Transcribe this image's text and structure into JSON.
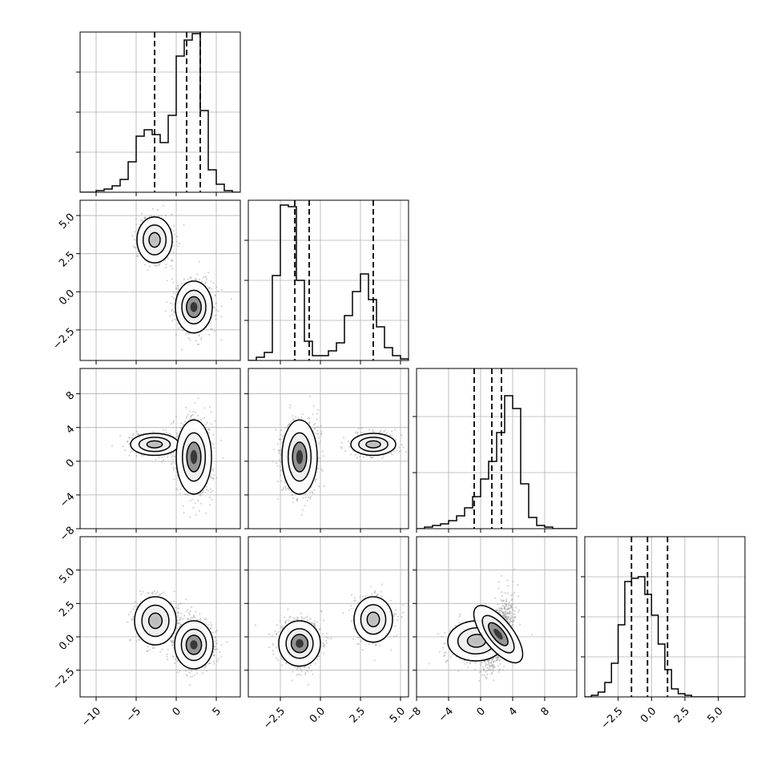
{
  "figure": {
    "type": "corner-plot",
    "background": "#ffffff",
    "line_color": "#000000",
    "grid_color": "#b0b0b0",
    "scatter_color": "#9e9e9e"
  },
  "chart_data": [
    {
      "type": "histogram",
      "panel": "p00",
      "xlim": [
        -12,
        8
      ],
      "ylim": [
        0,
        1.0
      ],
      "bin_start": -12,
      "bin_width": 1,
      "counts": [
        0,
        0,
        0.01,
        0.02,
        0.04,
        0.08,
        0.19,
        0.35,
        0.39,
        0.36,
        0.31,
        0.48,
        0.85,
        0.95,
        0.99,
        0.51,
        0.14,
        0.05,
        0.01,
        0.0
      ],
      "quantiles": [
        -2.7,
        1.3,
        3.0
      ],
      "yticks": [
        0.25,
        0.5,
        0.75
      ],
      "xticks": [
        -10,
        -5,
        0,
        5
      ],
      "show_tick_labels": false
    },
    {
      "type": "histogram",
      "panel": "p11",
      "xlim": [
        -4.5,
        5.5
      ],
      "ylim": [
        0,
        1.0
      ],
      "bin_start": -4.5,
      "bin_width": 0.5,
      "counts": [
        0,
        0.02,
        0.05,
        0.53,
        0.97,
        0.96,
        0.5,
        0.12,
        0.03,
        0.03,
        0.06,
        0.11,
        0.28,
        0.43,
        0.54,
        0.38,
        0.21,
        0.08,
        0.03,
        0.01
      ],
      "quantiles": [
        -1.6,
        -0.7,
        3.3
      ],
      "yticks": [
        0.25,
        0.5,
        0.75
      ],
      "xticks": [
        -2.5,
        0.0,
        2.5,
        5.0
      ],
      "show_tick_labels": false
    },
    {
      "type": "histogram",
      "panel": "p22",
      "xlim": [
        -8,
        12
      ],
      "ylim": [
        0,
        1.0
      ],
      "bin_start": -8,
      "bin_width": 1,
      "counts": [
        0,
        0.01,
        0.02,
        0.03,
        0.05,
        0.08,
        0.13,
        0.2,
        0.31,
        0.42,
        0.6,
        0.83,
        0.75,
        0.28,
        0.07,
        0.02,
        0.01,
        0,
        0,
        0
      ],
      "quantiles": [
        -0.8,
        1.4,
        2.6
      ],
      "yticks": [
        0.35,
        0.7
      ],
      "xticks": [
        -8,
        -4,
        0,
        4,
        8
      ],
      "show_tick_labels": false
    },
    {
      "type": "histogram",
      "panel": "p33",
      "xlim": [
        -5,
        7
      ],
      "ylim": [
        0,
        1.0
      ],
      "bin_start": -5,
      "bin_width": 0.5,
      "counts": [
        0,
        0.01,
        0.03,
        0.09,
        0.21,
        0.45,
        0.72,
        0.74,
        0.75,
        0.64,
        0.51,
        0.33,
        0.17,
        0.05,
        0.02,
        0.01,
        0,
        0,
        0,
        0,
        0,
        0,
        0,
        0
      ],
      "quantiles": [
        -1.5,
        -0.3,
        1.2
      ],
      "yticks": [
        0.25,
        0.5,
        0.75
      ],
      "xticks": [
        -2.5,
        0.0,
        2.5,
        5.0
      ],
      "xtick_labels": [
        "−2.5",
        "0.0",
        "2.5",
        "5.0"
      ]
    },
    {
      "type": "scatter-density",
      "panel": "p10",
      "xlim": [
        -12,
        8
      ],
      "ylim": [
        -4.5,
        6.0
      ],
      "xticks": [
        -10,
        -5,
        0,
        5
      ],
      "yticks": [
        -2.5,
        0.0,
        2.5,
        5.0
      ],
      "ytick_labels": [
        "−2.5",
        "0.0",
        "2.5",
        "5.0"
      ],
      "components": [
        {
          "cx": -2.7,
          "cy": 3.4,
          "sx": 1.1,
          "sy": 0.75,
          "rho": 0.0,
          "weight": 0.35
        },
        {
          "cx": 2.2,
          "cy": -1.0,
          "sx": 1.15,
          "sy": 0.85,
          "rho": 0.0,
          "weight": 0.65
        }
      ]
    },
    {
      "type": "scatter-density",
      "panel": "p20",
      "xlim": [
        -12,
        8
      ],
      "ylim": [
        -8,
        11
      ],
      "xticks": [
        -10,
        -5,
        0,
        5
      ],
      "yticks": [
        -8,
        -4,
        0,
        4,
        8
      ],
      "ytick_labels": [
        "−8",
        "−4",
        "0",
        "4",
        "8"
      ],
      "components": [
        {
          "cx": -2.7,
          "cy": 2.0,
          "sx": 1.5,
          "sy": 0.65,
          "rho": 0.0,
          "weight": 0.35
        },
        {
          "cx": 2.2,
          "cy": 0.5,
          "sx": 1.1,
          "sy": 2.2,
          "rho": 0.0,
          "weight": 0.65
        }
      ]
    },
    {
      "type": "scatter-density",
      "panel": "p21",
      "xlim": [
        -4.5,
        5.5
      ],
      "ylim": [
        -8,
        11
      ],
      "xticks": [
        -2.5,
        0.0,
        2.5,
        5.0
      ],
      "yticks": [
        -8,
        -4,
        0,
        4,
        8
      ],
      "components": [
        {
          "cx": -1.3,
          "cy": 0.5,
          "sx": 0.55,
          "sy": 2.2,
          "rho": 0.0,
          "weight": 0.65
        },
        {
          "cx": 3.3,
          "cy": 2.0,
          "sx": 0.7,
          "sy": 0.65,
          "rho": 0.0,
          "weight": 0.35
        }
      ]
    },
    {
      "type": "scatter-density",
      "panel": "p30",
      "xlim": [
        -12,
        8
      ],
      "ylim": [
        -4.5,
        7.5
      ],
      "xticks": [
        -10,
        -5,
        0,
        5
      ],
      "xtick_labels": [
        "−10",
        "−5",
        "0",
        "5"
      ],
      "yticks": [
        -2.5,
        0.0,
        2.5,
        5.0
      ],
      "ytick_labels": [
        "−2.5",
        "0.0",
        "2.5",
        "5.0"
      ],
      "components": [
        {
          "cx": -2.6,
          "cy": 1.2,
          "sx": 1.3,
          "sy": 0.9,
          "rho": 0.0,
          "weight": 0.35
        },
        {
          "cx": 2.2,
          "cy": -0.6,
          "sx": 1.2,
          "sy": 0.9,
          "rho": 0.0,
          "weight": 0.65
        }
      ]
    },
    {
      "type": "scatter-density",
      "panel": "p31",
      "xlim": [
        -4.5,
        5.5
      ],
      "ylim": [
        -4.5,
        7.5
      ],
      "xticks": [
        -2.5,
        0.0,
        2.5,
        5.0
      ],
      "xtick_labels": [
        "−2.5",
        "0.0",
        "2.5",
        "5.0"
      ],
      "yticks": [
        -2.5,
        0.0,
        2.5,
        5.0
      ],
      "components": [
        {
          "cx": -1.3,
          "cy": -0.5,
          "sx": 0.65,
          "sy": 0.85,
          "rho": 0.0,
          "weight": 0.65
        },
        {
          "cx": 3.3,
          "cy": 1.3,
          "sx": 0.6,
          "sy": 0.85,
          "rho": 0.0,
          "weight": 0.35
        }
      ]
    },
    {
      "type": "scatter-density",
      "panel": "p32",
      "xlim": [
        -8,
        12
      ],
      "ylim": [
        -4.5,
        7.5
      ],
      "xticks": [
        -8,
        -4,
        0,
        4,
        8
      ],
      "xtick_labels": [
        "−8",
        "−4",
        "0",
        "4",
        "8"
      ],
      "yticks": [
        -2.5,
        0.0,
        2.5,
        5.0
      ],
      "components": [
        {
          "cx": -0.5,
          "cy": -0.3,
          "sx": 1.8,
          "sy": 0.75,
          "rho": 0.1,
          "weight": 0.35
        },
        {
          "cx": 2.2,
          "cy": 0.2,
          "sx": 0.9,
          "sy": 1.3,
          "rho": 0.55,
          "weight": 0.65
        }
      ]
    }
  ]
}
